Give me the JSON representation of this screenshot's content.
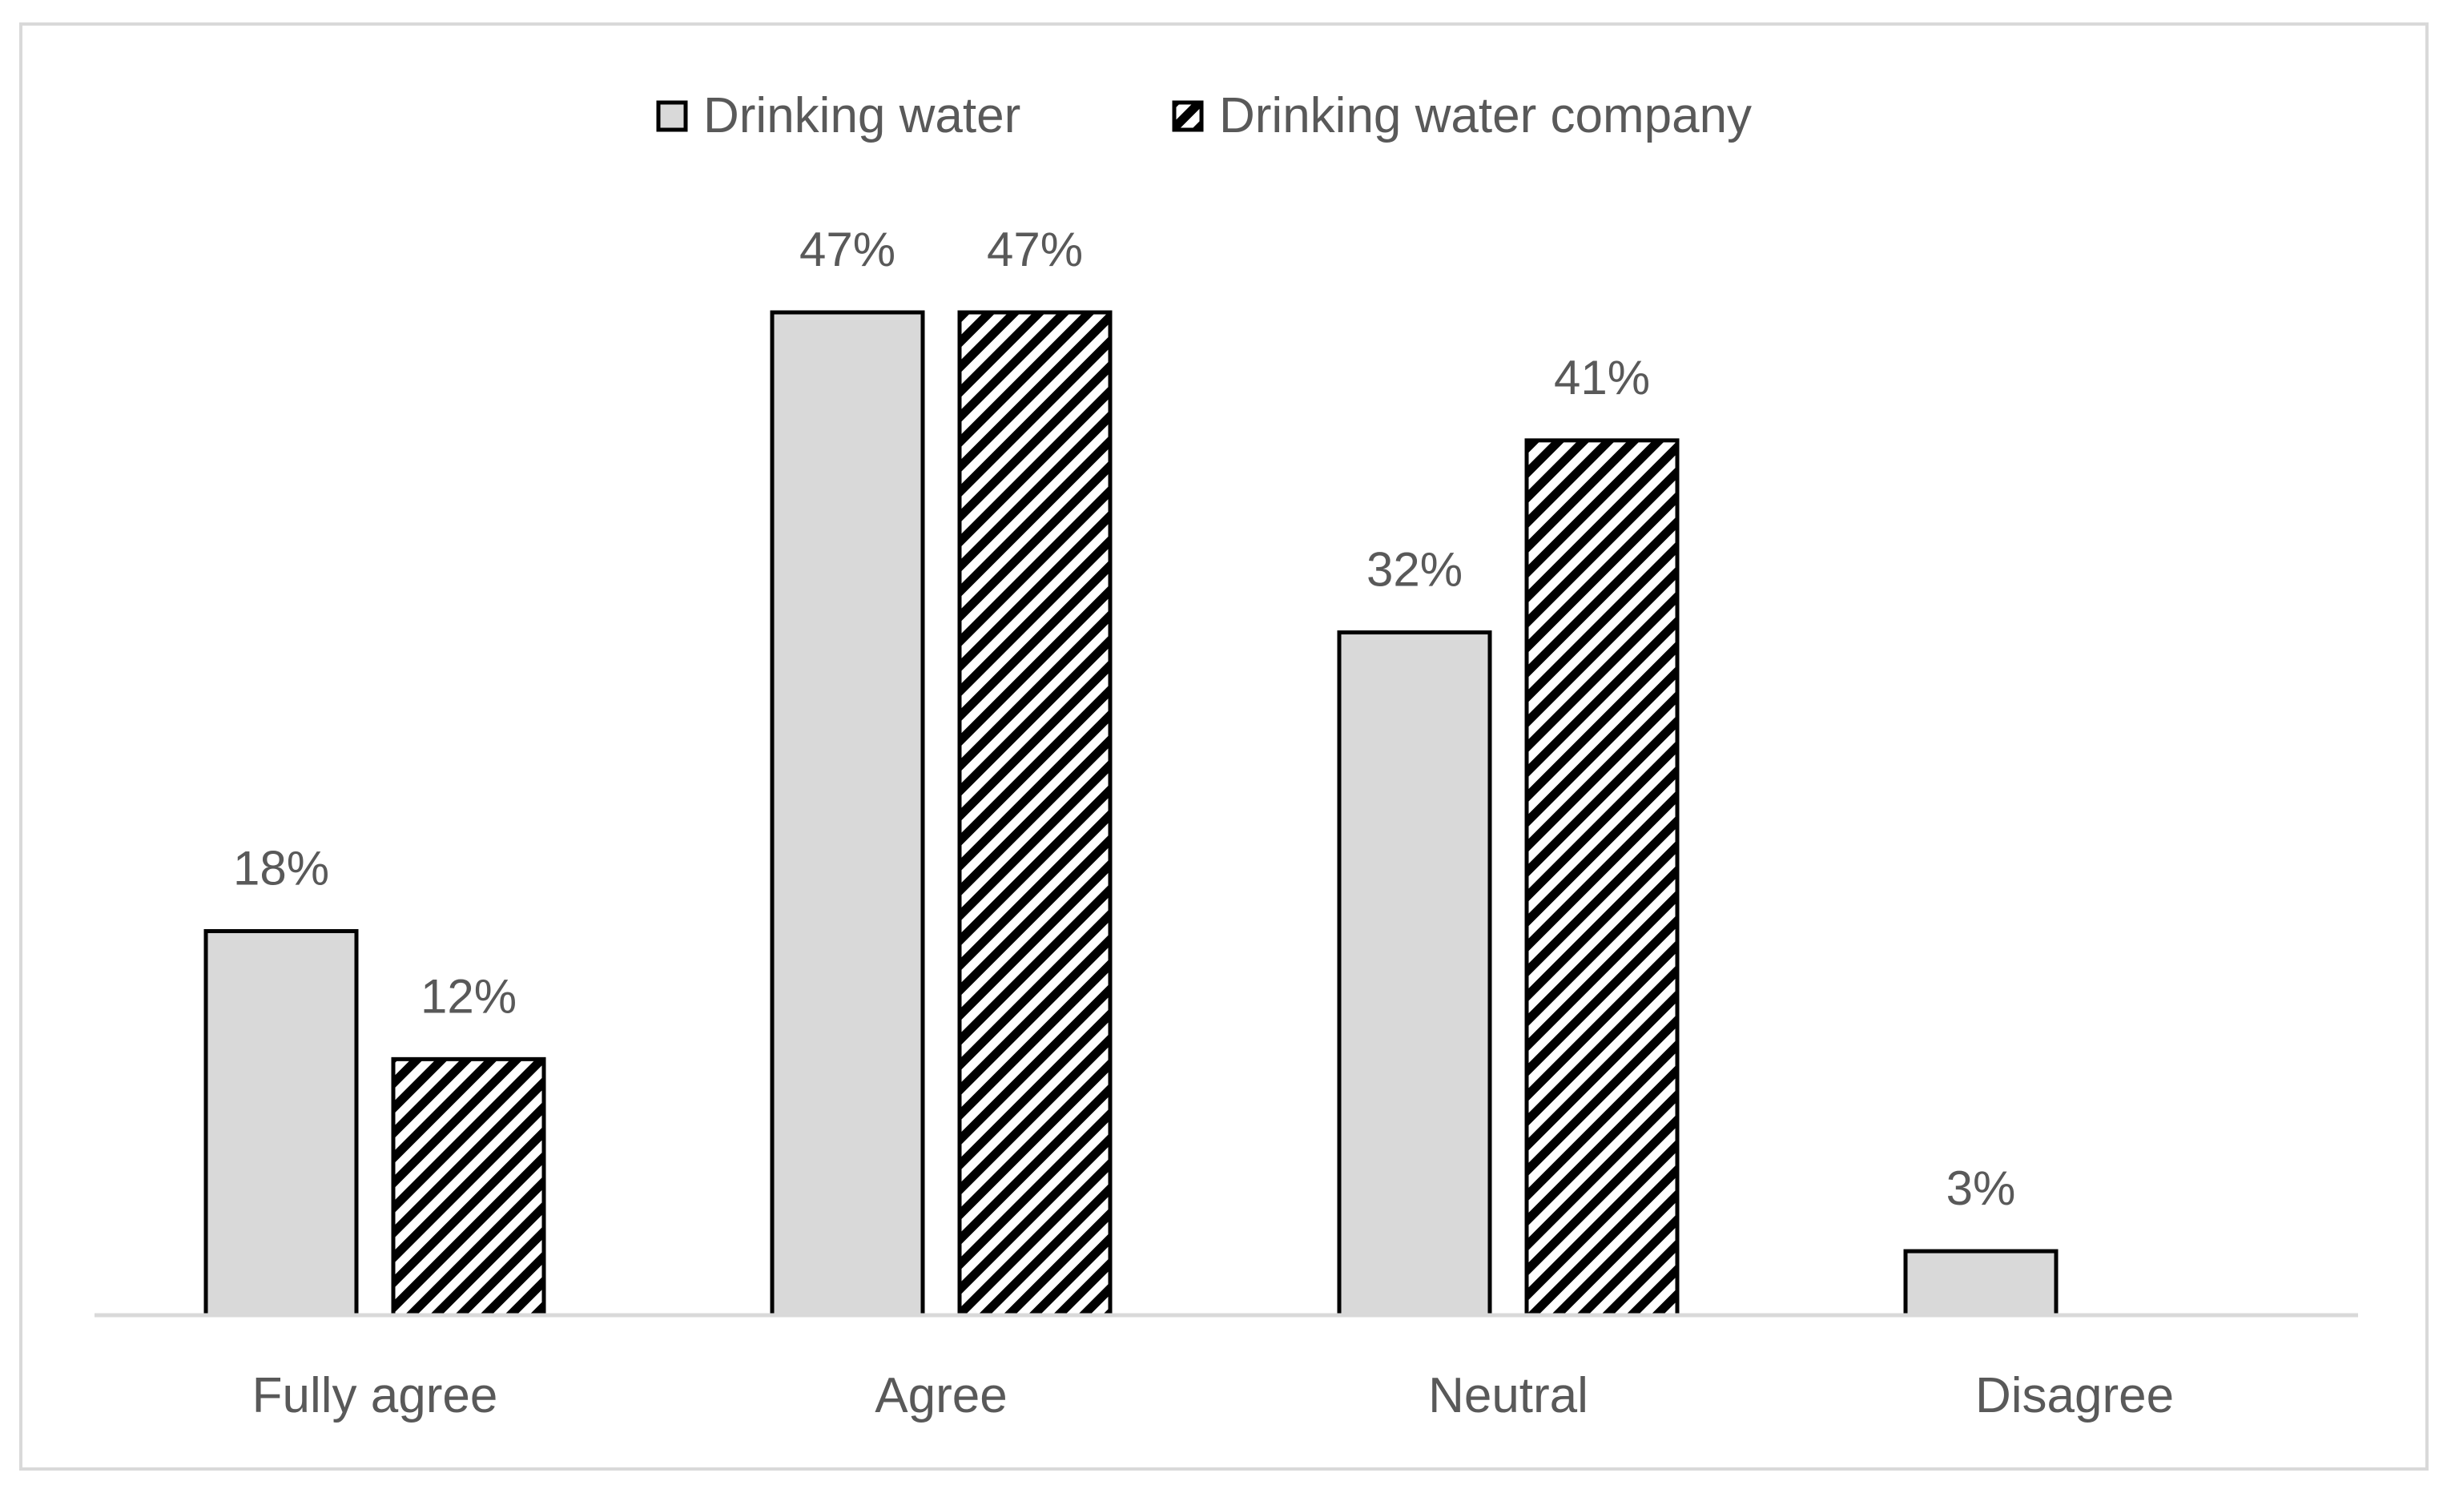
{
  "chart_data": {
    "type": "bar",
    "title": "",
    "xlabel": "",
    "ylabel": "",
    "ylim": [
      0,
      50
    ],
    "grid": false,
    "legend_position": "top",
    "categories": [
      "Fully agree",
      "Agree",
      "Neutral",
      "Disagree"
    ],
    "series": [
      {
        "name": "Drinking water",
        "fill": "solid-light-gray",
        "values": [
          18,
          47,
          32,
          3
        ],
        "labels": [
          "18%",
          "47%",
          "32%",
          "3%"
        ]
      },
      {
        "name": "Drinking water company",
        "fill": "diagonal-hatch",
        "values": [
          12,
          47,
          41,
          0
        ],
        "labels": [
          "12%",
          "47%",
          "41%",
          ""
        ]
      }
    ]
  },
  "colors": {
    "series_fill": "#d9d9d9",
    "bar_outline": "#000000",
    "hatch_line": "#000000",
    "text": "#595959",
    "axis": "#d9d9d9",
    "frame": "#d9d9d9"
  }
}
